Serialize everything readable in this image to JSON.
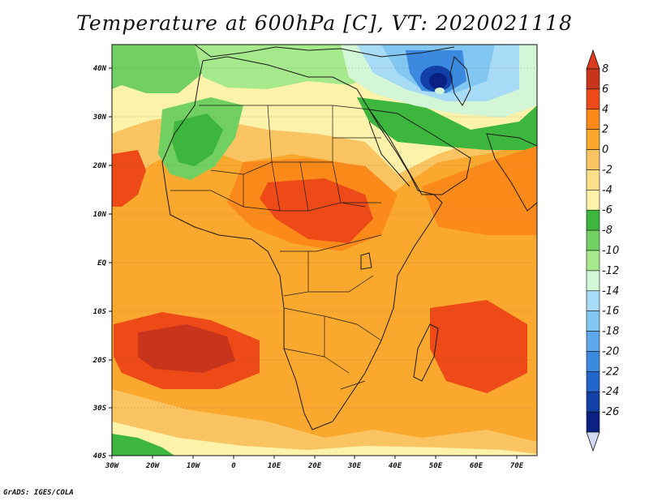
{
  "title": "Temperature at 600hPa [C], VT: 2020021118",
  "credit": "GrADS: IGES/COLA",
  "map": {
    "projection": "lat-lon",
    "lon_range": [
      -30,
      75
    ],
    "lat_range": [
      -40,
      45
    ],
    "lat_ticks": [
      "40N",
      "30N",
      "20N",
      "10N",
      "EQ",
      "10S",
      "20S",
      "30S",
      "40S"
    ],
    "lon_ticks": [
      "30W",
      "20W",
      "10W",
      "0",
      "10E",
      "20E",
      "30E",
      "40E",
      "50E",
      "60E",
      "70E"
    ]
  },
  "colorbar": {
    "labels": [
      "8",
      "6",
      "4",
      "2",
      "0",
      "-2",
      "-4",
      "-6",
      "-8",
      "-10",
      "-12",
      "-14",
      "-16",
      "-18",
      "-20",
      "-22",
      "-24",
      "-26"
    ],
    "colors": [
      "#c8341c",
      "#ee4a18",
      "#fb8a1a",
      "#fba92e",
      "#fac463",
      "#fbe089",
      "#fcf2aa",
      "#3cb63c",
      "#72d062",
      "#a6e88c",
      "#d2f6d6",
      "#a8dcf6",
      "#82c6f2",
      "#5fa8ec",
      "#3c89e0",
      "#2266cc",
      "#1040a8",
      "#0a2082"
    ],
    "top_cap": "#dc3c1e",
    "bottom_cap": "#d4d8f4"
  }
}
